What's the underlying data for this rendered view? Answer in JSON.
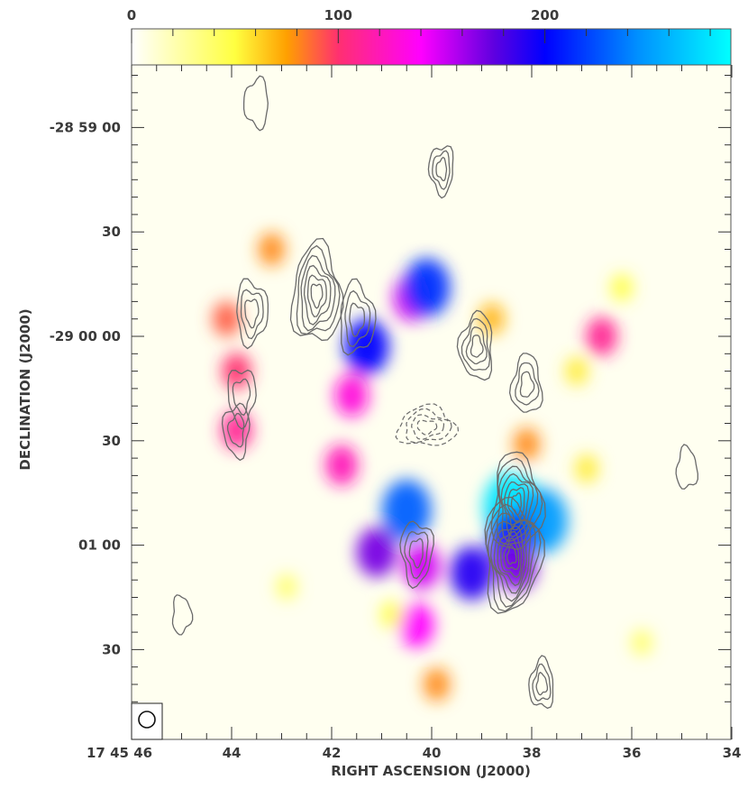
{
  "chart_data": {
    "type": "heatmap",
    "title": "",
    "xlabel": "RIGHT ASCENSION (J2000)",
    "ylabel": "DECLINATION (J2000)",
    "colorbar": {
      "tick_labels": [
        "0",
        "100",
        "200"
      ],
      "tick_values": [
        0,
        100,
        200
      ],
      "range": [
        0,
        290
      ],
      "stops": [
        {
          "value": 0,
          "color": "#ffffff"
        },
        {
          "value": 50,
          "color": "#ffff40"
        },
        {
          "value": 75,
          "color": "#ffa000"
        },
        {
          "value": 100,
          "color": "#ff3070"
        },
        {
          "value": 140,
          "color": "#ff00ff"
        },
        {
          "value": 175,
          "color": "#6000e0"
        },
        {
          "value": 200,
          "color": "#0000ff"
        },
        {
          "value": 245,
          "color": "#0090ff"
        },
        {
          "value": 290,
          "color": "#00ffff"
        }
      ]
    },
    "x_axis": {
      "tick_labels": [
        "17 45 46",
        "44",
        "42",
        "40",
        "38",
        "36",
        "34"
      ],
      "tick_values_ra_sec": [
        46,
        44,
        42,
        40,
        38,
        36,
        34
      ],
      "range_ra_sec": [
        46,
        33.5
      ]
    },
    "y_axis": {
      "tick_labels": [
        "-28 59 00",
        "30",
        "-29 00 00",
        "30",
        "01 00",
        "30"
      ],
      "tick_values_dec_arcsec_from_-29_00_00": [
        60,
        30,
        0,
        -30,
        -60,
        -90
      ],
      "range_dec_arcsec": [
        -110,
        77
      ]
    },
    "emission_blobs": [
      {
        "ra": 44.1,
        "dec": 5,
        "value": 90
      },
      {
        "ra": 43.9,
        "dec": -10,
        "value": 100
      },
      {
        "ra": 43.9,
        "dec": -27,
        "value": 110
      },
      {
        "ra": 43.2,
        "dec": 25,
        "value": 80
      },
      {
        "ra": 41.3,
        "dec": -3,
        "value": 200
      },
      {
        "ra": 40.4,
        "dec": 11,
        "value": 150
      },
      {
        "ra": 41.6,
        "dec": -17,
        "value": 130
      },
      {
        "ra": 41.8,
        "dec": -37,
        "value": 120
      },
      {
        "ra": 40.1,
        "dec": 14,
        "value": 215
      },
      {
        "ra": 40.5,
        "dec": -50,
        "value": 230
      },
      {
        "ra": 41.1,
        "dec": -62,
        "value": 170
      },
      {
        "ra": 40.2,
        "dec": -66,
        "value": 150
      },
      {
        "ra": 39.2,
        "dec": -68,
        "value": 190
      },
      {
        "ra": 40.3,
        "dec": -83,
        "value": 140
      },
      {
        "ra": 38.4,
        "dec": -49,
        "value": 280
      },
      {
        "ra": 37.8,
        "dec": -53,
        "value": 250
      },
      {
        "ra": 38.4,
        "dec": -58,
        "value": 210
      },
      {
        "ra": 38.3,
        "dec": -66,
        "value": 170
      },
      {
        "ra": 38.1,
        "dec": -31,
        "value": 80
      },
      {
        "ra": 36.6,
        "dec": 0,
        "value": 110
      },
      {
        "ra": 38.8,
        "dec": 5,
        "value": 70
      },
      {
        "ra": 37.1,
        "dec": -10,
        "value": 55
      },
      {
        "ra": 36.9,
        "dec": -38,
        "value": 55
      },
      {
        "ra": 36.2,
        "dec": 14,
        "value": 50
      },
      {
        "ra": 40.8,
        "dec": -80,
        "value": 50
      },
      {
        "ra": 39.9,
        "dec": -100,
        "value": 80
      },
      {
        "ra": 35.8,
        "dec": -88,
        "value": 40
      },
      {
        "ra": 42.9,
        "dec": -72,
        "value": 40
      }
    ],
    "contours": [
      {
        "ra": 42.3,
        "dec": 12,
        "levels": 6,
        "peak_scale": 1.0
      },
      {
        "ra": 41.5,
        "dec": 5,
        "levels": 3,
        "peak_scale": 0.6
      },
      {
        "ra": 43.6,
        "dec": 7,
        "levels": 3,
        "peak_scale": 0.5
      },
      {
        "ra": 43.8,
        "dec": -17,
        "levels": 2,
        "peak_scale": 0.4
      },
      {
        "ra": 43.9,
        "dec": -27,
        "levels": 2,
        "peak_scale": 0.35
      },
      {
        "ra": 39.1,
        "dec": -3,
        "levels": 4,
        "peak_scale": 0.55
      },
      {
        "ra": 38.1,
        "dec": -14,
        "levels": 3,
        "peak_scale": 0.45
      },
      {
        "ra": 38.3,
        "dec": -48,
        "levels": 7,
        "peak_scale": 1.0
      },
      {
        "ra": 38.4,
        "dec": -63,
        "levels": 9,
        "peak_scale": 1.2
      },
      {
        "ra": 40.3,
        "dec": -62,
        "levels": 3,
        "peak_scale": 0.5
      },
      {
        "ra": 39.8,
        "dec": 48,
        "levels": 3,
        "peak_scale": 0.3
      },
      {
        "ra": 43.5,
        "dec": 67,
        "levels": 1,
        "peak_scale": 0.3
      },
      {
        "ra": 37.8,
        "dec": -100,
        "levels": 3,
        "peak_scale": 0.3
      },
      {
        "ra": 34.9,
        "dec": -38,
        "levels": 1,
        "peak_scale": 0.2
      },
      {
        "ra": 45.0,
        "dec": -80,
        "levels": 1,
        "peak_scale": 0.15
      }
    ],
    "negative_contours": {
      "ra": 40.1,
      "dec": -26,
      "levels": 4
    },
    "contour_color": "#6a6a6a",
    "beam": {
      "shape": "circle",
      "position": "bottom-left"
    },
    "grid": false,
    "legend": "none"
  }
}
